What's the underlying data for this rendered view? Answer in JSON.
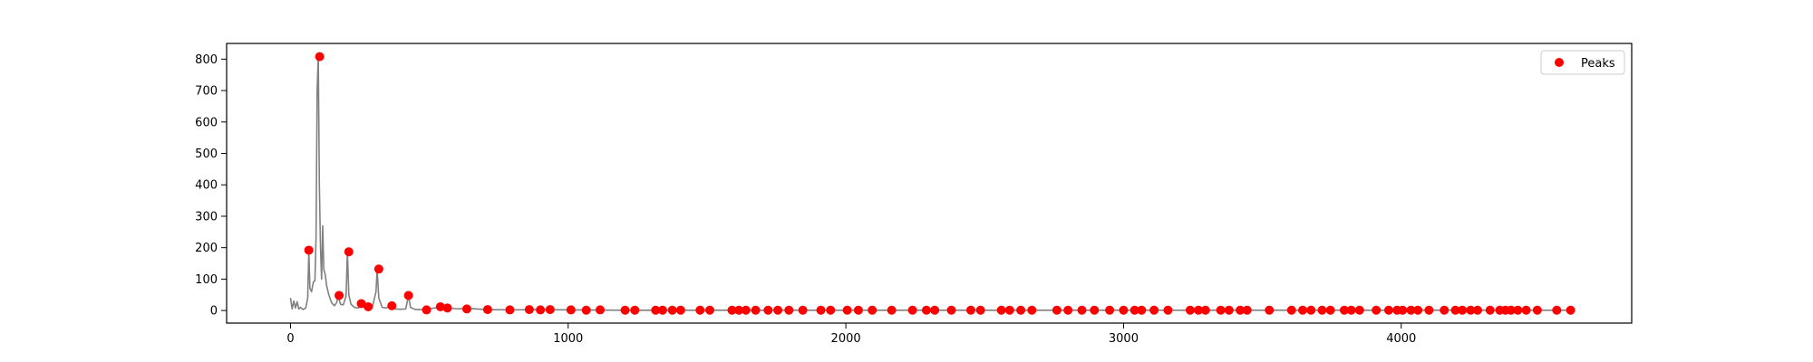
{
  "chart_data": {
    "type": "line",
    "title": "",
    "xlabel": "",
    "ylabel": "",
    "xlim": [
      -230,
      4830
    ],
    "ylim": [
      -40,
      850
    ],
    "grid": false,
    "legend_position": "top-right",
    "x_ticks": [
      {
        "value": 0,
        "label": "0"
      },
      {
        "value": 1000,
        "label": "1000"
      },
      {
        "value": 2000,
        "label": "2000"
      },
      {
        "value": 3000,
        "label": "3000"
      },
      {
        "value": 4000,
        "label": "4000"
      }
    ],
    "y_ticks": [
      {
        "value": 0,
        "label": "0"
      },
      {
        "value": 100,
        "label": "100"
      },
      {
        "value": 200,
        "label": "200"
      },
      {
        "value": 300,
        "label": "300"
      },
      {
        "value": 400,
        "label": "400"
      },
      {
        "value": 500,
        "label": "500"
      },
      {
        "value": 600,
        "label": "600"
      },
      {
        "value": 700,
        "label": "700"
      },
      {
        "value": 800,
        "label": "800"
      }
    ],
    "series": [
      {
        "name": "",
        "type": "line",
        "color": "#808080",
        "points": [
          [
            0,
            40
          ],
          [
            6,
            5
          ],
          [
            12,
            30
          ],
          [
            18,
            8
          ],
          [
            24,
            28
          ],
          [
            30,
            5
          ],
          [
            36,
            10
          ],
          [
            45,
            3
          ],
          [
            55,
            8
          ],
          [
            62,
            40
          ],
          [
            66,
            190
          ],
          [
            70,
            70
          ],
          [
            76,
            60
          ],
          [
            82,
            90
          ],
          [
            88,
            95
          ],
          [
            92,
            230
          ],
          [
            96,
            700
          ],
          [
            100,
            810
          ],
          [
            104,
            400
          ],
          [
            108,
            200
          ],
          [
            112,
            100
          ],
          [
            116,
            270
          ],
          [
            120,
            130
          ],
          [
            125,
            115
          ],
          [
            130,
            80
          ],
          [
            138,
            50
          ],
          [
            148,
            25
          ],
          [
            158,
            15
          ],
          [
            166,
            25
          ],
          [
            172,
            45
          ],
          [
            180,
            20
          ],
          [
            190,
            18
          ],
          [
            200,
            45
          ],
          [
            205,
            185
          ],
          [
            210,
            50
          ],
          [
            218,
            20
          ],
          [
            230,
            10
          ],
          [
            245,
            8
          ],
          [
            255,
            20
          ],
          [
            268,
            8
          ],
          [
            280,
            10
          ],
          [
            295,
            12
          ],
          [
            308,
            60
          ],
          [
            312,
            130
          ],
          [
            318,
            40
          ],
          [
            330,
            10
          ],
          [
            345,
            8
          ],
          [
            360,
            15
          ],
          [
            375,
            5
          ],
          [
            395,
            4
          ],
          [
            415,
            5
          ],
          [
            425,
            48
          ],
          [
            432,
            10
          ],
          [
            450,
            3
          ],
          [
            480,
            3
          ],
          [
            520,
            8
          ],
          [
            540,
            12
          ],
          [
            560,
            10
          ],
          [
            600,
            5
          ],
          [
            640,
            7
          ],
          [
            700,
            3
          ],
          [
            800,
            2
          ],
          [
            900,
            3
          ],
          [
            1000,
            2
          ],
          [
            1200,
            1
          ],
          [
            1500,
            1
          ],
          [
            2000,
            1
          ],
          [
            2500,
            1
          ],
          [
            3000,
            1
          ],
          [
            3500,
            1
          ],
          [
            4000,
            1
          ],
          [
            4300,
            1
          ],
          [
            4600,
            1
          ]
        ]
      },
      {
        "name": "Peaks",
        "type": "scatter",
        "color": "#ff0000",
        "points": [
          [
            66,
            192
          ],
          [
            105,
            808
          ],
          [
            175,
            48
          ],
          [
            210,
            187
          ],
          [
            255,
            22
          ],
          [
            280,
            12
          ],
          [
            318,
            132
          ],
          [
            365,
            15
          ],
          [
            425,
            48
          ],
          [
            490,
            2
          ],
          [
            540,
            12
          ],
          [
            565,
            8
          ],
          [
            635,
            5
          ],
          [
            710,
            3
          ],
          [
            790,
            2
          ],
          [
            860,
            3
          ],
          [
            900,
            2
          ],
          [
            935,
            3
          ],
          [
            1010,
            2
          ],
          [
            1065,
            1
          ],
          [
            1115,
            2
          ],
          [
            1205,
            1
          ],
          [
            1240,
            1
          ],
          [
            1315,
            1
          ],
          [
            1340,
            1
          ],
          [
            1375,
            1
          ],
          [
            1405,
            1
          ],
          [
            1475,
            1
          ],
          [
            1510,
            1
          ],
          [
            1590,
            1
          ],
          [
            1615,
            1
          ],
          [
            1640,
            1
          ],
          [
            1675,
            1
          ],
          [
            1720,
            1
          ],
          [
            1755,
            1
          ],
          [
            1795,
            1
          ],
          [
            1845,
            1
          ],
          [
            1910,
            1
          ],
          [
            1945,
            1
          ],
          [
            2005,
            1
          ],
          [
            2045,
            1
          ],
          [
            2095,
            1
          ],
          [
            2165,
            1
          ],
          [
            2240,
            1
          ],
          [
            2290,
            1
          ],
          [
            2320,
            1
          ],
          [
            2380,
            1
          ],
          [
            2450,
            1
          ],
          [
            2485,
            1
          ],
          [
            2560,
            1
          ],
          [
            2590,
            1
          ],
          [
            2630,
            1
          ],
          [
            2670,
            1
          ],
          [
            2760,
            1
          ],
          [
            2800,
            1
          ],
          [
            2850,
            1
          ],
          [
            2895,
            1
          ],
          [
            2950,
            1
          ],
          [
            3000,
            1
          ],
          [
            3040,
            1
          ],
          [
            3065,
            1
          ],
          [
            3110,
            1
          ],
          [
            3160,
            1
          ],
          [
            3240,
            1
          ],
          [
            3270,
            1
          ],
          [
            3295,
            1
          ],
          [
            3350,
            1
          ],
          [
            3380,
            1
          ],
          [
            3420,
            1
          ],
          [
            3445,
            1
          ],
          [
            3525,
            1
          ],
          [
            3605,
            1
          ],
          [
            3645,
            1
          ],
          [
            3675,
            1
          ],
          [
            3715,
            1
          ],
          [
            3745,
            1
          ],
          [
            3795,
            1
          ],
          [
            3820,
            1
          ],
          [
            3850,
            1
          ],
          [
            3910,
            1
          ],
          [
            3955,
            1
          ],
          [
            3985,
            1
          ],
          [
            4005,
            1
          ],
          [
            4035,
            1
          ],
          [
            4060,
            1
          ],
          [
            4100,
            1
          ],
          [
            4155,
            1
          ],
          [
            4195,
            1
          ],
          [
            4220,
            1
          ],
          [
            4250,
            1
          ],
          [
            4275,
            1
          ],
          [
            4320,
            1
          ],
          [
            4355,
            1
          ],
          [
            4375,
            1
          ],
          [
            4395,
            1
          ],
          [
            4420,
            1
          ],
          [
            4450,
            1
          ],
          [
            4490,
            1
          ],
          [
            4560,
            1
          ],
          [
            4610,
            1
          ]
        ]
      }
    ],
    "legend": [
      {
        "label": "Peaks",
        "marker": "circle",
        "color": "#ff0000"
      }
    ]
  }
}
